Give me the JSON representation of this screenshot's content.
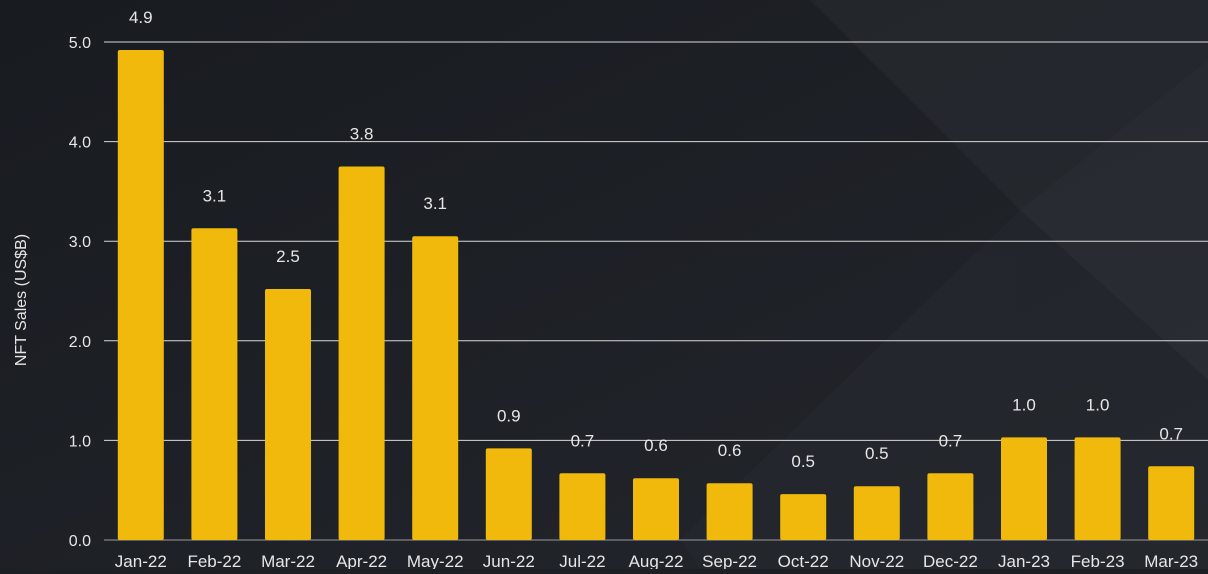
{
  "chart_data": {
    "type": "bar",
    "ylabel": "NFT Sales (US$B)",
    "ylim": [
      0,
      5
    ],
    "yticks": [
      "0.0",
      "1.0",
      "2.0",
      "3.0",
      "4.0",
      "5.0"
    ],
    "grid": true,
    "categories": [
      "Jan-22",
      "Feb-22",
      "Mar-22",
      "Apr-22",
      "May-22",
      "Jun-22",
      "Jul-22",
      "Aug-22",
      "Sep-22",
      "Oct-22",
      "Nov-22",
      "Dec-22",
      "Jan-23",
      "Feb-23",
      "Mar-23"
    ],
    "values": [
      4.92,
      3.13,
      2.52,
      3.75,
      3.05,
      0.92,
      0.67,
      0.62,
      0.57,
      0.46,
      0.54,
      0.67,
      1.03,
      1.03,
      0.74
    ],
    "labels": [
      "4.9",
      "3.1",
      "2.5",
      "3.8",
      "3.1",
      "0.9",
      "0.7",
      "0.6",
      "0.6",
      "0.5",
      "0.5",
      "0.7",
      "1.0",
      "1.0",
      "0.7"
    ],
    "colors": {
      "bar": "#f0b90b",
      "background": "#1c1f24",
      "grid": "#d8d8d8",
      "text": "#e6e6e6"
    }
  }
}
